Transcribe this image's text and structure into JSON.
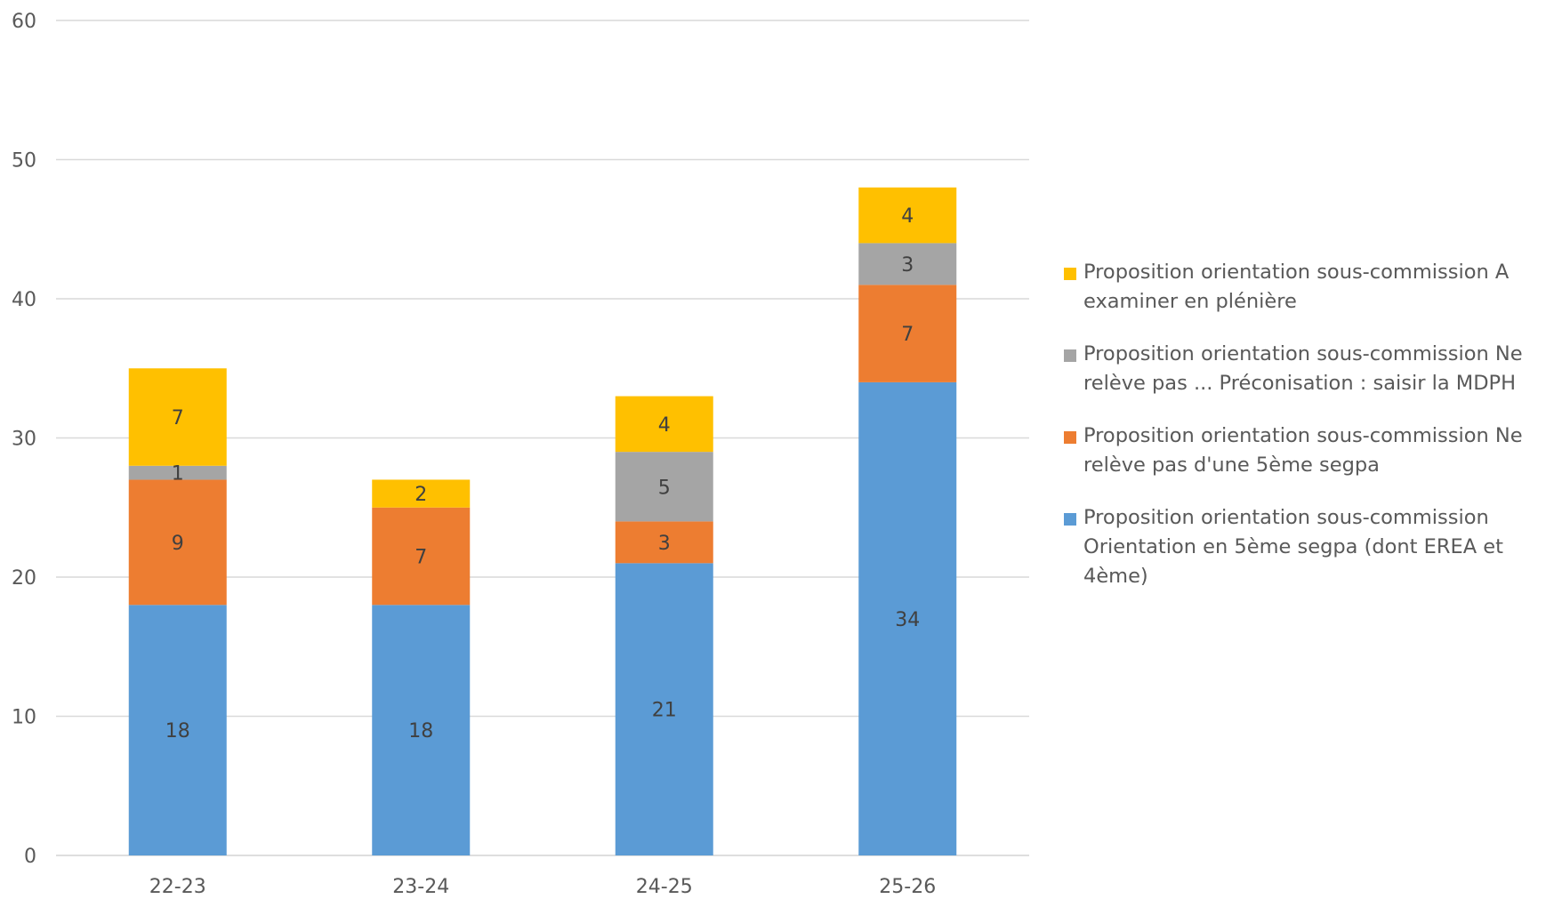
{
  "chart_data": {
    "type": "bar",
    "stacked": true,
    "categories": [
      "22-23",
      "23-24",
      "24-25",
      "25-26"
    ],
    "ylim": [
      0,
      60
    ],
    "yticks": [
      0,
      10,
      20,
      30,
      40,
      50,
      60
    ],
    "grid": true,
    "legend_position": "right",
    "series": [
      {
        "name": "Proposition orientation sous-commission Orientation en 5ème segpa (dont EREA et 4ème)",
        "color": "#5B9BD5",
        "values": [
          18,
          18,
          21,
          34
        ]
      },
      {
        "name": "Proposition orientation sous-commission Ne relève pas d'une 5ème  segpa",
        "color": "#ED7D31",
        "values": [
          9,
          7,
          3,
          7
        ]
      },
      {
        "name": "Proposition orientation sous-commission Ne relève pas ... Préconisation : saisir la MDPH",
        "color": "#A5A5A5",
        "values": [
          1,
          null,
          5,
          3
        ]
      },
      {
        "name": "Proposition orientation sous-commission A examiner en plénière",
        "color": "#FFC000",
        "values": [
          7,
          2,
          4,
          4
        ]
      }
    ]
  }
}
